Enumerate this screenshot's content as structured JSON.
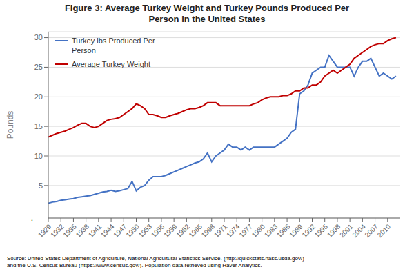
{
  "chart_data": {
    "type": "line",
    "title": "Figure 3: Average Turkey Weight and Turkey Pounds Produced Per\nPerson in the United States",
    "y_label": "Pounds",
    "annotations": [
      "."
    ],
    "source": "Source: United States Department of Agriculture, National Agricultural Statistics Service. (http://quickstats.nass.usda.gov/)\nand the U.S. Census Bureau (https://www.census.gov/). Population data retrieved using Haver Analytics.",
    "x": [
      1929,
      1930,
      1931,
      1932,
      1933,
      1934,
      1935,
      1936,
      1937,
      1938,
      1939,
      1940,
      1941,
      1942,
      1943,
      1944,
      1945,
      1946,
      1947,
      1948,
      1949,
      1950,
      1951,
      1952,
      1953,
      1954,
      1955,
      1956,
      1957,
      1958,
      1959,
      1960,
      1961,
      1962,
      1963,
      1964,
      1965,
      1966,
      1967,
      1968,
      1969,
      1970,
      1971,
      1972,
      1973,
      1974,
      1975,
      1976,
      1977,
      1978,
      1979,
      1980,
      1981,
      1982,
      1983,
      1984,
      1985,
      1986,
      1987,
      1988,
      1989,
      1990,
      1991,
      1992,
      1993,
      1994,
      1995,
      1996,
      1997,
      1998,
      1999,
      2000,
      2001,
      2002,
      2003,
      2004,
      2005,
      2006,
      2007,
      2008,
      2009,
      2010,
      2011,
      2012
    ],
    "series": [
      {
        "name": "Turkey lbs Produced Per\nPerson",
        "color": "#4472C4",
        "values": [
          2.0,
          2.2,
          2.3,
          2.5,
          2.6,
          2.7,
          2.8,
          3.0,
          3.1,
          3.2,
          3.3,
          3.5,
          3.7,
          3.9,
          4.0,
          4.2,
          4.0,
          4.1,
          4.3,
          4.5,
          5.7,
          4.1,
          4.7,
          5.0,
          5.9,
          6.5,
          6.5,
          6.5,
          6.7,
          7.0,
          7.3,
          7.6,
          7.9,
          8.2,
          8.5,
          8.8,
          9.0,
          9.5,
          10.5,
          9.0,
          10.0,
          10.5,
          11.0,
          12.0,
          11.5,
          11.5,
          11.0,
          11.5,
          11.0,
          11.5,
          11.5,
          11.5,
          11.5,
          11.5,
          11.5,
          12.0,
          12.5,
          13.0,
          14.0,
          14.5,
          20.5,
          21.0,
          22.0,
          24.0,
          24.5,
          25.0,
          25.0,
          27.0,
          26.0,
          25.0,
          25.0,
          25.0,
          25.0,
          23.5,
          25.0,
          26.0,
          26.0,
          26.5,
          25.0,
          23.5,
          24.0,
          23.5,
          23.0,
          23.5
        ]
      },
      {
        "name": "Average Turkey Weight",
        "color": "#C00000",
        "values": [
          13.2,
          13.5,
          13.8,
          14.0,
          14.2,
          14.5,
          14.8,
          15.2,
          15.5,
          15.5,
          15.0,
          14.8,
          15.0,
          15.5,
          16.0,
          16.2,
          16.3,
          16.5,
          17.0,
          17.5,
          18.0,
          18.8,
          18.5,
          18.0,
          17.0,
          17.0,
          16.8,
          16.5,
          16.5,
          16.8,
          17.0,
          17.2,
          17.5,
          17.8,
          18.0,
          18.0,
          18.2,
          18.5,
          19.0,
          19.0,
          19.0,
          18.5,
          18.5,
          18.5,
          18.5,
          18.5,
          18.5,
          18.5,
          18.5,
          18.8,
          19.0,
          19.5,
          19.8,
          20.0,
          20.0,
          20.0,
          20.2,
          20.2,
          20.5,
          21.0,
          21.0,
          21.5,
          21.5,
          22.0,
          22.0,
          22.5,
          23.5,
          24.0,
          24.5,
          24.0,
          24.5,
          25.0,
          25.5,
          26.5,
          27.0,
          27.5,
          28.0,
          28.5,
          28.8,
          29.0,
          29.0,
          29.5,
          29.8,
          30.0
        ]
      }
    ],
    "xlim": [
      1929,
      2013
    ],
    "xticks": [
      1929,
      1932,
      1935,
      1938,
      1941,
      1944,
      1947,
      1950,
      1953,
      1956,
      1959,
      1962,
      1965,
      1968,
      1971,
      1974,
      1977,
      1980,
      1983,
      1986,
      1989,
      1992,
      1995,
      1998,
      2001,
      2004,
      2007,
      2010
    ],
    "ylim": [
      -0.5,
      31
    ],
    "yticks": [
      5,
      10,
      15,
      20,
      25,
      30
    ],
    "grid": true,
    "legend": "upper left"
  }
}
